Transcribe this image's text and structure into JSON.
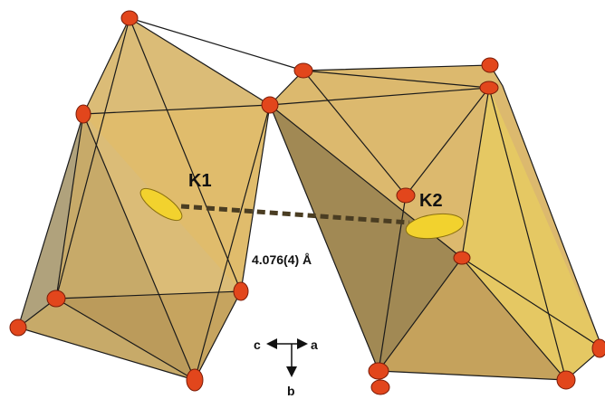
{
  "labels": {
    "k1": "K1",
    "k2": "K2",
    "distance": "4.076(4) Å"
  },
  "axes": {
    "c": "c",
    "a": "a",
    "b": "b"
  }
}
